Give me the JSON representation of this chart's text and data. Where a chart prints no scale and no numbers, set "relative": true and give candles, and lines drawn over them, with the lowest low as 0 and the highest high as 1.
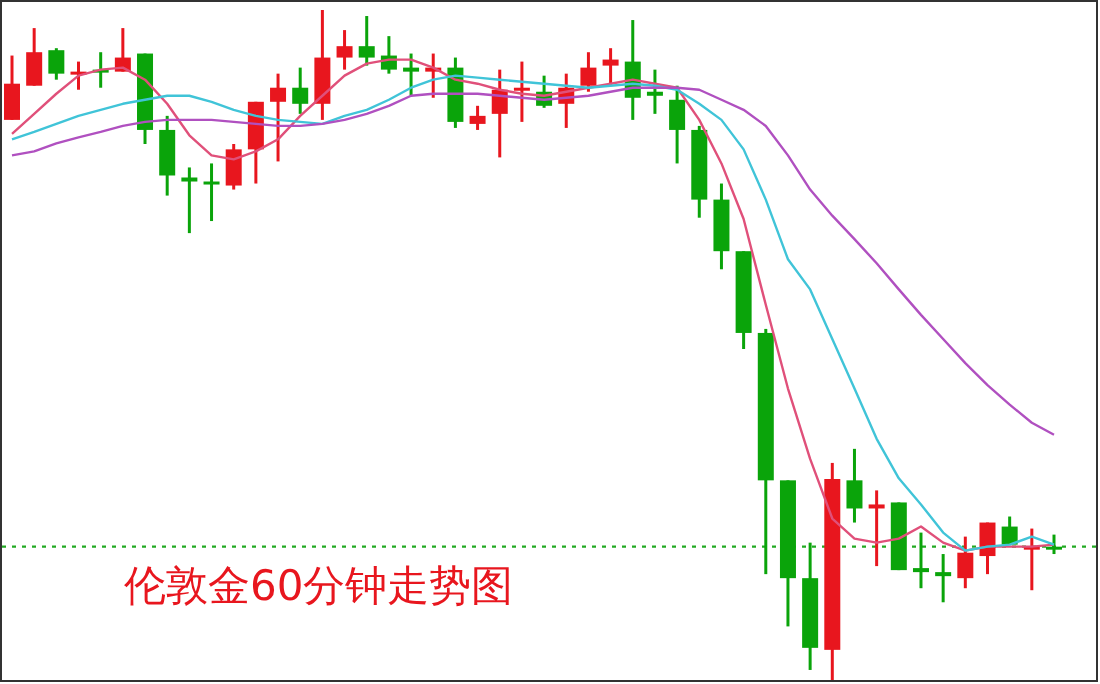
{
  "chart_data": {
    "type": "candlestick",
    "title": "伦敦金60分钟走势图",
    "relative": true,
    "categories": [
      null,
      null,
      null,
      null,
      null,
      null,
      null,
      null,
      null,
      null,
      null,
      null,
      null,
      null,
      null,
      null,
      null,
      null,
      null,
      null,
      null,
      null,
      null,
      null,
      null,
      null,
      null,
      null,
      null,
      null,
      null,
      null,
      null,
      null,
      null,
      null,
      null,
      null,
      null,
      null,
      null,
      null,
      null,
      null,
      null,
      null,
      null,
      null
    ],
    "ohlc": [
      [
        0.836,
        0.932,
        0.836,
        0.89
      ],
      [
        0.887,
        0.973,
        0.887,
        0.937
      ],
      [
        0.94,
        0.943,
        0.896,
        0.905
      ],
      [
        0.905,
        0.923,
        0.881,
        0.908
      ],
      [
        0.911,
        0.937,
        0.884,
        0.908
      ],
      [
        0.908,
        0.973,
        0.908,
        0.929
      ],
      [
        0.935,
        0.935,
        0.8,
        0.821
      ],
      [
        0.821,
        0.842,
        0.723,
        0.753
      ],
      [
        0.75,
        0.765,
        0.667,
        0.744
      ],
      [
        0.744,
        0.771,
        0.685,
        0.741
      ],
      [
        0.738,
        0.8,
        0.732,
        0.792
      ],
      [
        0.792,
        0.863,
        0.741,
        0.863
      ],
      [
        0.863,
        0.905,
        0.774,
        0.884
      ],
      [
        0.884,
        0.914,
        0.845,
        0.86
      ],
      [
        0.86,
        1,
        0.836,
        0.929
      ],
      [
        0.929,
        0.97,
        0.911,
        0.946
      ],
      [
        0.946,
        0.991,
        0.917,
        0.929
      ],
      [
        0.932,
        0.961,
        0.905,
        0.911
      ],
      [
        0.914,
        0.935,
        0.872,
        0.908
      ],
      [
        0.908,
        0.935,
        0.869,
        0.914
      ],
      [
        0.914,
        0.929,
        0.824,
        0.833
      ],
      [
        0.83,
        0.857,
        0.821,
        0.842
      ],
      [
        0.845,
        0.911,
        0.78,
        0.881
      ],
      [
        0.881,
        0.923,
        0.833,
        0.884
      ],
      [
        0.878,
        0.902,
        0.854,
        0.857
      ],
      [
        0.86,
        0.905,
        0.824,
        0.884
      ],
      [
        0.887,
        0.937,
        0.878,
        0.914
      ],
      [
        0.917,
        0.943,
        0.887,
        0.926
      ],
      [
        0.923,
        0.985,
        0.836,
        0.869
      ],
      [
        0.878,
        0.911,
        0.845,
        0.872
      ],
      [
        0.866,
        0.887,
        0.771,
        0.821
      ],
      [
        0.821,
        0.827,
        0.69,
        0.717
      ],
      [
        0.717,
        0.741,
        0.613,
        0.64
      ],
      [
        0.64,
        0.64,
        0.494,
        0.518
      ],
      [
        0.518,
        0.524,
        0.158,
        0.298
      ],
      [
        0.298,
        0.298,
        0.08,
        0.152
      ],
      [
        0.152,
        0.205,
        0.015,
        0.048
      ],
      [
        0.045,
        0.324,
        0,
        0.3
      ],
      [
        0.298,
        0.345,
        0.235,
        0.256
      ],
      [
        0.256,
        0.283,
        0.17,
        0.262
      ],
      [
        0.265,
        0.265,
        0.164,
        0.164
      ],
      [
        0.167,
        0.22,
        0.137,
        0.161
      ],
      [
        0.161,
        0.188,
        0.116,
        0.155
      ],
      [
        0.152,
        0.214,
        0.137,
        0.19
      ],
      [
        0.185,
        0.235,
        0.158,
        0.235
      ],
      [
        0.229,
        0.244,
        0.202,
        0.202
      ],
      [
        0.196,
        0.226,
        0.134,
        0.199
      ],
      [
        0.199,
        0.217,
        0.188,
        0.196
      ]
    ],
    "colors": [
      "#e8161e",
      "#e8161e",
      "#0aa40a",
      "#e8161e",
      "#0aa40a",
      "#e8161e",
      "#0aa40a",
      "#0aa40a",
      "#0aa40a",
      "#0aa40a",
      "#e8161e",
      "#e8161e",
      "#e8161e",
      "#0aa40a",
      "#e8161e",
      "#e8161e",
      "#0aa40a",
      "#0aa40a",
      "#0aa40a",
      "#e8161e",
      "#0aa40a",
      "#e8161e",
      "#e8161e",
      "#e8161e",
      "#0aa40a",
      "#e8161e",
      "#e8161e",
      "#e8161e",
      "#0aa40a",
      "#0aa40a",
      "#0aa40a",
      "#0aa40a",
      "#0aa40a",
      "#0aa40a",
      "#0aa40a",
      "#0aa40a",
      "#0aa40a",
      "#e8161e",
      "#0aa40a",
      "#e8161e",
      "#0aa40a",
      "#0aa40a",
      "#0aa40a",
      "#e8161e",
      "#e8161e",
      "#0aa40a",
      "#e8161e",
      "#0aa40a"
    ],
    "series": [
      {
        "type": "line",
        "color": "#e0507a",
        "values": [
          0.815,
          0.845,
          0.875,
          0.902,
          0.911,
          0.914,
          0.896,
          0.86,
          0.813,
          0.783,
          0.777,
          0.789,
          0.807,
          0.842,
          0.872,
          0.902,
          0.92,
          0.926,
          0.926,
          0.914,
          0.896,
          0.89,
          0.881,
          0.875,
          0.872,
          0.878,
          0.884,
          0.89,
          0.896,
          0.89,
          0.884,
          0.836,
          0.771,
          0.688,
          0.56,
          0.435,
          0.33,
          0.241,
          0.211,
          0.205,
          0.211,
          0.229,
          0.205,
          0.193,
          0.199,
          0.199,
          0.199,
          0.202
        ]
      },
      {
        "type": "line",
        "color": "#40c4d8",
        "values": [
          0.807,
          0.818,
          0.83,
          0.842,
          0.851,
          0.86,
          0.866,
          0.872,
          0.872,
          0.863,
          0.851,
          0.842,
          0.836,
          0.833,
          0.83,
          0.842,
          0.851,
          0.866,
          0.884,
          0.896,
          0.902,
          0.899,
          0.896,
          0.893,
          0.89,
          0.887,
          0.884,
          0.887,
          0.89,
          0.887,
          0.881,
          0.86,
          0.836,
          0.792,
          0.717,
          0.628,
          0.583,
          0.509,
          0.435,
          0.36,
          0.301,
          0.262,
          0.22,
          0.193,
          0.199,
          0.202,
          0.214,
          0.202
        ]
      },
      {
        "type": "line",
        "color": "#b050c0",
        "values": [
          0.783,
          0.789,
          0.801,
          0.81,
          0.818,
          0.827,
          0.833,
          0.836,
          0.836,
          0.836,
          0.833,
          0.83,
          0.827,
          0.827,
          0.83,
          0.836,
          0.845,
          0.857,
          0.872,
          0.875,
          0.875,
          0.875,
          0.872,
          0.869,
          0.866,
          0.869,
          0.872,
          0.878,
          0.884,
          0.884,
          0.884,
          0.881,
          0.866,
          0.851,
          0.827,
          0.783,
          0.732,
          0.693,
          0.658,
          0.622,
          0.583,
          0.545,
          0.509,
          0.473,
          0.44,
          0.411,
          0.384,
          0.366
        ]
      }
    ],
    "ref_lines": [
      {
        "axis": "y",
        "value": 0.199,
        "color": "#22aa22",
        "line_style": "dotted"
      }
    ]
  }
}
